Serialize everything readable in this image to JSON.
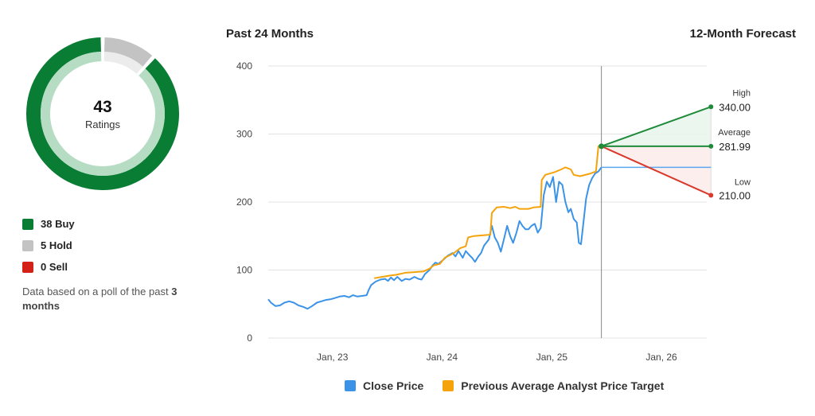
{
  "ratings": {
    "total": "43",
    "total_label": "Ratings",
    "buy": 38,
    "hold": 5,
    "sell": 0,
    "buy_label": "38 Buy",
    "hold_label": "5 Hold",
    "sell_label": "0 Sell",
    "note_prefix": "Data based on a poll of the past",
    "note_period": "3 months",
    "colors": {
      "buy": "#0a7d35",
      "buy_light": "#b7dcc4",
      "hold": "#c3c3c3",
      "hold_light": "#ececec",
      "sell": "#d32117"
    }
  },
  "chart_data": {
    "type": "line",
    "title_left": "Past 24 Months",
    "title_right": "12-Month Forecast",
    "ylim": [
      0,
      400
    ],
    "yticks": [
      "0",
      "100",
      "200",
      "300",
      "400"
    ],
    "xlim": [
      "2022-06-01",
      "2026-06-01"
    ],
    "xticks": [
      {
        "label": "Jan, 23",
        "date": "2023-01-01"
      },
      {
        "label": "Jan, 24",
        "date": "2024-01-01"
      },
      {
        "label": "Jan, 25",
        "date": "2025-01-01"
      },
      {
        "label": "Jan, 26",
        "date": "2026-01-01"
      }
    ],
    "forecast_start": "2025-06-15",
    "series": [
      {
        "name": "Close Price",
        "color": "#3b93e8",
        "points": [
          [
            "2022-06-01",
            57
          ],
          [
            "2022-06-10",
            52
          ],
          [
            "2022-06-25",
            47
          ],
          [
            "2022-07-10",
            48
          ],
          [
            "2022-07-25",
            52
          ],
          [
            "2022-08-10",
            54
          ],
          [
            "2022-08-25",
            52
          ],
          [
            "2022-09-10",
            48
          ],
          [
            "2022-09-25",
            46
          ],
          [
            "2022-10-10",
            43
          ],
          [
            "2022-10-25",
            47
          ],
          [
            "2022-11-10",
            52
          ],
          [
            "2022-11-25",
            54
          ],
          [
            "2022-12-10",
            56
          ],
          [
            "2022-12-25",
            57
          ],
          [
            "2023-01-10",
            59
          ],
          [
            "2023-01-25",
            61
          ],
          [
            "2023-02-10",
            62
          ],
          [
            "2023-02-25",
            60
          ],
          [
            "2023-03-10",
            63
          ],
          [
            "2023-03-25",
            61
          ],
          [
            "2023-04-10",
            62
          ],
          [
            "2023-04-25",
            63
          ],
          [
            "2023-05-01",
            70
          ],
          [
            "2023-05-10",
            78
          ],
          [
            "2023-05-25",
            83
          ],
          [
            "2023-06-10",
            86
          ],
          [
            "2023-06-25",
            87
          ],
          [
            "2023-07-05",
            84
          ],
          [
            "2023-07-15",
            89
          ],
          [
            "2023-07-25",
            85
          ],
          [
            "2023-08-05",
            90
          ],
          [
            "2023-08-20",
            84
          ],
          [
            "2023-09-01",
            87
          ],
          [
            "2023-09-15",
            86
          ],
          [
            "2023-10-01",
            90
          ],
          [
            "2023-10-15",
            87
          ],
          [
            "2023-10-25",
            86
          ],
          [
            "2023-11-05",
            94
          ],
          [
            "2023-11-20",
            100
          ],
          [
            "2023-12-01",
            107
          ],
          [
            "2023-12-10",
            111
          ],
          [
            "2023-12-20",
            109
          ],
          [
            "2024-01-05",
            115
          ],
          [
            "2024-01-20",
            121
          ],
          [
            "2024-02-05",
            125
          ],
          [
            "2024-02-15",
            120
          ],
          [
            "2024-02-25",
            128
          ],
          [
            "2024-03-10",
            118
          ],
          [
            "2024-03-20",
            128
          ],
          [
            "2024-04-01",
            122
          ],
          [
            "2024-04-10",
            118
          ],
          [
            "2024-04-20",
            112
          ],
          [
            "2024-05-01",
            120
          ],
          [
            "2024-05-10",
            125
          ],
          [
            "2024-05-20",
            136
          ],
          [
            "2024-06-05",
            145
          ],
          [
            "2024-06-15",
            165
          ],
          [
            "2024-06-25",
            148
          ],
          [
            "2024-07-05",
            140
          ],
          [
            "2024-07-15",
            127
          ],
          [
            "2024-07-25",
            145
          ],
          [
            "2024-08-05",
            165
          ],
          [
            "2024-08-15",
            150
          ],
          [
            "2024-08-25",
            140
          ],
          [
            "2024-09-05",
            155
          ],
          [
            "2024-09-15",
            172
          ],
          [
            "2024-09-25",
            165
          ],
          [
            "2024-10-05",
            160
          ],
          [
            "2024-10-15",
            160
          ],
          [
            "2024-10-25",
            165
          ],
          [
            "2024-11-05",
            168
          ],
          [
            "2024-11-15",
            155
          ],
          [
            "2024-11-25",
            162
          ],
          [
            "2024-12-05",
            210
          ],
          [
            "2024-12-15",
            230
          ],
          [
            "2024-12-25",
            222
          ],
          [
            "2025-01-05",
            237
          ],
          [
            "2025-01-15",
            200
          ],
          [
            "2025-01-25",
            230
          ],
          [
            "2025-02-05",
            225
          ],
          [
            "2025-02-15",
            200
          ],
          [
            "2025-02-25",
            185
          ],
          [
            "2025-03-05",
            190
          ],
          [
            "2025-03-15",
            175
          ],
          [
            "2025-03-25",
            170
          ],
          [
            "2025-04-01",
            140
          ],
          [
            "2025-04-08",
            138
          ],
          [
            "2025-04-15",
            165
          ],
          [
            "2025-04-25",
            205
          ],
          [
            "2025-05-05",
            225
          ],
          [
            "2025-05-15",
            235
          ],
          [
            "2025-05-25",
            242
          ],
          [
            "2025-06-05",
            245
          ],
          [
            "2025-06-15",
            251
          ]
        ]
      },
      {
        "name": "Previous Average Analyst Price Target",
        "color": "#f5a30c",
        "points": [
          [
            "2023-05-20",
            88
          ],
          [
            "2023-06-15",
            90
          ],
          [
            "2023-07-15",
            92
          ],
          [
            "2023-08-01",
            93
          ],
          [
            "2023-09-01",
            96
          ],
          [
            "2023-10-01",
            97
          ],
          [
            "2023-11-01",
            98
          ],
          [
            "2023-11-20",
            102
          ],
          [
            "2023-12-05",
            107
          ],
          [
            "2023-12-25",
            109
          ],
          [
            "2024-01-10",
            118
          ],
          [
            "2024-02-10",
            125
          ],
          [
            "2024-03-01",
            132
          ],
          [
            "2024-03-20",
            135
          ],
          [
            "2024-03-28",
            148
          ],
          [
            "2024-04-15",
            150
          ],
          [
            "2024-05-15",
            151
          ],
          [
            "2024-06-10",
            152
          ],
          [
            "2024-06-15",
            184
          ],
          [
            "2024-07-01",
            192
          ],
          [
            "2024-07-25",
            193
          ],
          [
            "2024-08-15",
            191
          ],
          [
            "2024-09-01",
            193
          ],
          [
            "2024-09-15",
            190
          ],
          [
            "2024-10-15",
            190
          ],
          [
            "2024-11-01",
            192
          ],
          [
            "2024-11-25",
            193
          ],
          [
            "2024-11-28",
            232
          ],
          [
            "2024-12-10",
            240
          ],
          [
            "2025-01-10",
            244
          ],
          [
            "2025-02-01",
            248
          ],
          [
            "2025-02-15",
            251
          ],
          [
            "2025-03-05",
            248
          ],
          [
            "2025-03-15",
            240
          ],
          [
            "2025-04-05",
            238
          ],
          [
            "2025-05-10",
            242
          ],
          [
            "2025-05-28",
            245
          ],
          [
            "2025-06-05",
            282
          ],
          [
            "2025-06-15",
            282
          ]
        ]
      }
    ],
    "forecast": {
      "end": "2026-06-15",
      "current": 251,
      "high": {
        "label": "High",
        "value": 340,
        "text": "340.00",
        "color": "#1f8b3a"
      },
      "average": {
        "label": "Average",
        "value": 281.99,
        "text": "281.99",
        "color": "#1f8b3a"
      },
      "low": {
        "label": "Low",
        "value": 210,
        "text": "210.00",
        "color": "#d93a2b"
      }
    },
    "legend": [
      {
        "label": "Close Price",
        "color": "#3b93e8"
      },
      {
        "label": "Previous Average Analyst Price Target",
        "color": "#f5a30c"
      }
    ]
  }
}
